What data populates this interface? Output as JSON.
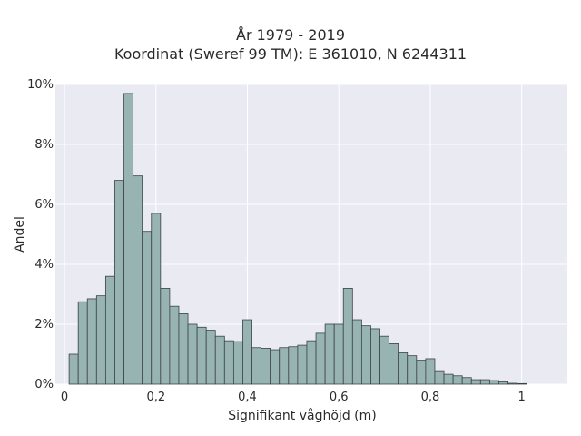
{
  "chart_data": {
    "type": "bar",
    "title": "År 1979 - 2019",
    "subtitle": "Koordinat (Sweref 99 TM): E 361010, N 6244311",
    "xlabel": "Signifikant våghöjd (m)",
    "ylabel": "Andel",
    "xlim": [
      -0.02,
      1.1
    ],
    "ylim": [
      0,
      10
    ],
    "x_ticks": [
      {
        "value": 0,
        "label": "0"
      },
      {
        "value": 0.2,
        "label": "0,2"
      },
      {
        "value": 0.4,
        "label": "0,4"
      },
      {
        "value": 0.6,
        "label": "0,6"
      },
      {
        "value": 0.8,
        "label": "0,8"
      },
      {
        "value": 1.0,
        "label": "1"
      }
    ],
    "y_ticks": [
      {
        "value": 0,
        "label": "0%"
      },
      {
        "value": 2,
        "label": "2%"
      },
      {
        "value": 4,
        "label": "4%"
      },
      {
        "value": 6,
        "label": "6%"
      },
      {
        "value": 8,
        "label": "8%"
      },
      {
        "value": 10,
        "label": "10%"
      }
    ],
    "grid": true,
    "bin_start": 0.01,
    "bin_width": 0.02,
    "values": [
      1.0,
      2.75,
      2.85,
      2.95,
      3.6,
      6.8,
      9.7,
      6.95,
      5.1,
      5.7,
      3.2,
      2.6,
      2.35,
      2.0,
      1.9,
      1.8,
      1.6,
      1.45,
      1.42,
      2.15,
      1.22,
      1.2,
      1.15,
      1.22,
      1.25,
      1.3,
      1.45,
      1.7,
      2.0,
      2.0,
      3.2,
      2.15,
      1.95,
      1.85,
      1.6,
      1.35,
      1.05,
      0.95,
      0.8,
      0.85,
      0.45,
      0.33,
      0.28,
      0.22,
      0.15,
      0.15,
      0.12,
      0.08,
      0.03,
      0.02
    ],
    "colors": {
      "bar_fill": "#98b4b2",
      "bar_stroke": "#3a4444",
      "plot_bg": "#eaeaf2",
      "grid": "#ffffff"
    }
  }
}
